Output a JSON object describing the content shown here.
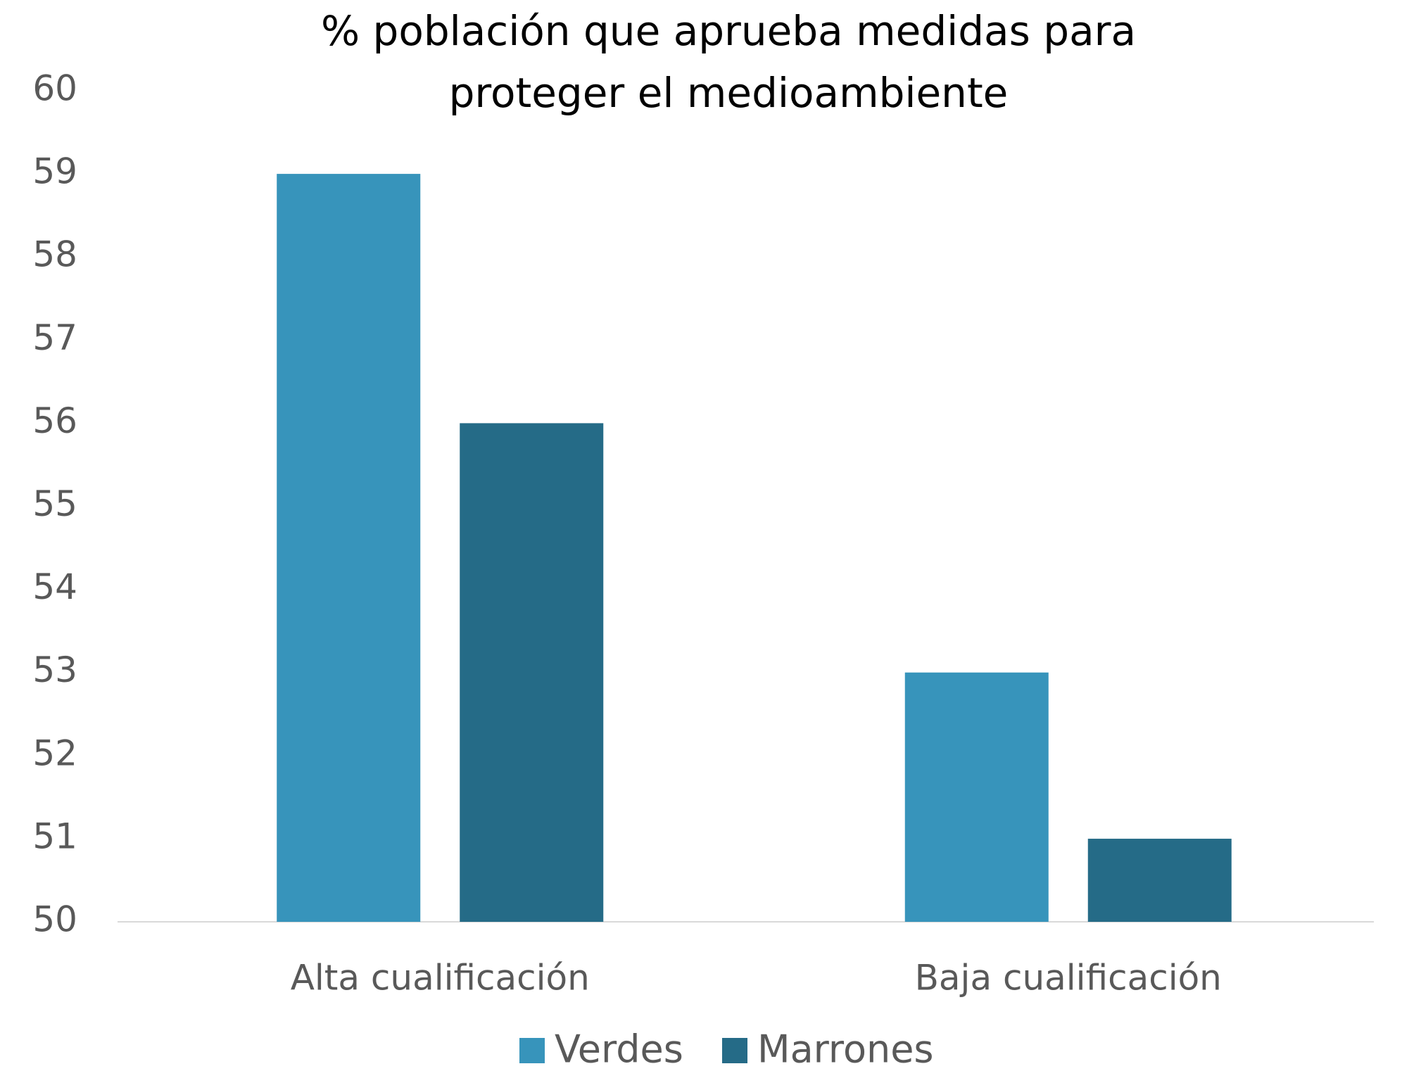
{
  "chart_data": {
    "type": "bar",
    "title": [
      "% población que aprueba medidas para",
      "proteger el medioambiente"
    ],
    "categories": [
      "Alta cualificación",
      "Baja cualificación"
    ],
    "series": [
      {
        "name": "Verdes",
        "color": "#3794bb",
        "values": [
          59,
          53
        ]
      },
      {
        "name": "Marrones",
        "color": "#256b87",
        "values": [
          56,
          51
        ]
      }
    ],
    "ylim": [
      50,
      60
    ],
    "yticks": [
      50,
      51,
      52,
      53,
      54,
      55,
      56,
      57,
      58,
      59,
      60
    ],
    "grid": false,
    "legend": "bottom"
  }
}
